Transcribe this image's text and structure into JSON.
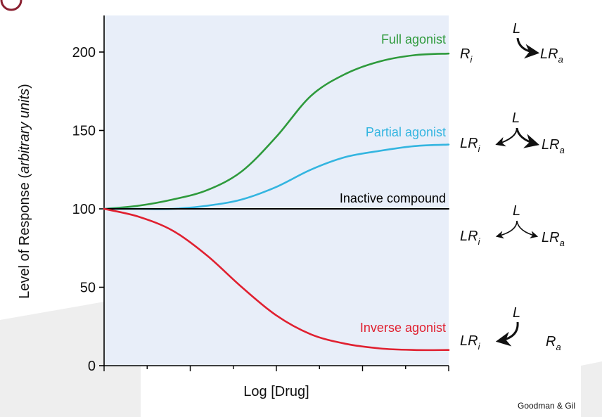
{
  "chart_data": {
    "type": "line",
    "xlabel": "Log [Drug]",
    "ylabel_main": "Level of Response (",
    "ylabel_italic": "arbitrary units",
    "ylabel_close": ")",
    "ylim": [
      0,
      220
    ],
    "yticks": [
      0,
      50,
      100,
      150,
      200
    ],
    "x_has_numeric_ticks": false,
    "series": [
      {
        "name": "Full agonist",
        "color": "#2e9a3c",
        "x": [
          0,
          1,
          2,
          3,
          4,
          5,
          6,
          7,
          8,
          9,
          10
        ],
        "y": [
          100,
          102,
          106,
          112,
          124,
          146,
          172,
          186,
          194,
          198,
          199
        ]
      },
      {
        "name": "Partial agonist",
        "color": "#33b5e0",
        "x": [
          0,
          1,
          2,
          3,
          4,
          5,
          6,
          7,
          8,
          9,
          10
        ],
        "y": [
          100,
          100,
          100,
          102,
          106,
          114,
          125,
          133,
          137,
          140,
          141
        ]
      },
      {
        "name": "Inactive compound",
        "color": "#000000",
        "x": [
          0,
          10
        ],
        "y": [
          100,
          100
        ]
      },
      {
        "name": "Inverse agonist",
        "color": "#e02030",
        "x": [
          0,
          1,
          2,
          3,
          4,
          5,
          6,
          7,
          8,
          9,
          10
        ],
        "y": [
          100,
          95,
          86,
          70,
          50,
          32,
          20,
          14,
          11,
          10,
          10
        ]
      }
    ]
  },
  "schemes": [
    {
      "ligand": "L",
      "left": "R",
      "left_sub": "i",
      "right": "LR",
      "right_sub": "a"
    },
    {
      "ligand": "L",
      "left": "LR",
      "left_sub": "i",
      "right": "LR",
      "right_sub": "a"
    },
    {
      "ligand": "L",
      "left": "LR",
      "left_sub": "i",
      "right": "LR",
      "right_sub": "a"
    },
    {
      "ligand": "L",
      "left": "LR",
      "left_sub": "i",
      "right": "R",
      "right_sub": "a"
    }
  ],
  "footer": {
    "credit": "Goodman & Gil"
  },
  "colors": {
    "plot_bg": "#e8eef9",
    "slide_circle": "#8a2030",
    "slide_shape": "#eeeeee"
  }
}
